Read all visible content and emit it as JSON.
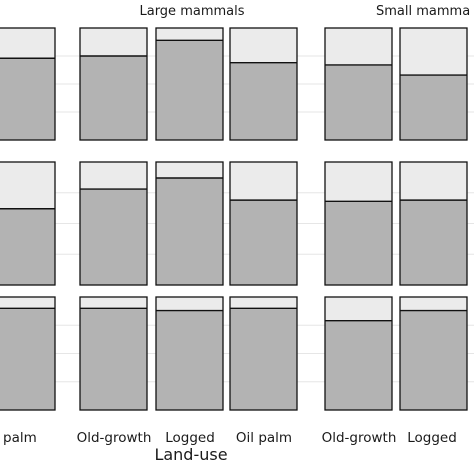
{
  "chart_data": {
    "type": "bar",
    "chart_kind": "stacked proportion bars in a faceted grid",
    "facets": [
      "",
      "Large mammals",
      "Small mammals"
    ],
    "visible_facet_strip_labels": [
      "Large mammals",
      "Small mamma"
    ],
    "xlabel": "Land-use",
    "categories": [
      "Old-growth",
      "Logged",
      "Oil palm"
    ],
    "visible_tick_labels": [
      "il palm",
      "Old-growth",
      "Logged",
      "Oil palm",
      "Old-growth",
      "Logged"
    ],
    "ylim": [
      0,
      1
    ],
    "grid": true,
    "colors": {
      "lower": "#b3b3b3",
      "upper": "#ebebeb",
      "outline": "#111111",
      "grid": "#e6e6e6"
    },
    "rows": [
      {
        "row": 1,
        "values": [
          [
            null,
            null,
            0.73
          ],
          [
            0.75,
            0.89,
            0.69
          ],
          [
            0.67,
            0.58,
            null
          ]
        ]
      },
      {
        "row": 2,
        "values": [
          [
            null,
            null,
            0.62
          ],
          [
            0.78,
            0.87,
            0.69
          ],
          [
            0.68,
            0.69,
            null
          ]
        ]
      },
      {
        "row": 3,
        "values": [
          [
            null,
            null,
            0.9
          ],
          [
            0.9,
            0.88,
            0.9
          ],
          [
            0.79,
            0.88,
            null
          ]
        ]
      }
    ]
  }
}
